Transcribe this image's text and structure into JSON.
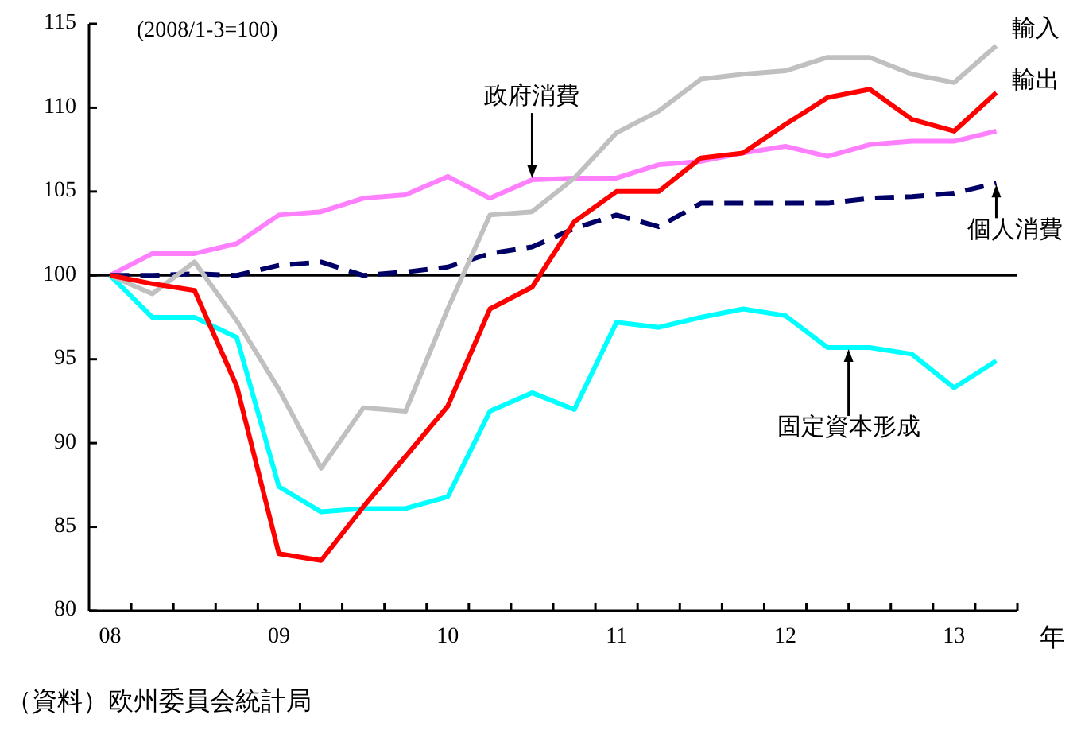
{
  "chart_data": {
    "type": "line",
    "subtitle": "(2008/1-3=100)",
    "xlabel": "年",
    "annotations": [
      "（資料）欧州委員会統計局"
    ],
    "categories": [
      "08",
      null,
      null,
      null,
      "09",
      null,
      null,
      null,
      "10",
      null,
      null,
      null,
      "11",
      null,
      null,
      null,
      "12",
      null,
      null,
      null,
      "13",
      null
    ],
    "ylim": [
      80,
      115
    ],
    "yticks": [
      80,
      85,
      90,
      95,
      100,
      105,
      110,
      115
    ],
    "ref_lines": [
      {
        "axis": "y",
        "value": 100,
        "color": "#000000"
      }
    ],
    "series": [
      {
        "name": "輸入",
        "color": "#c0c0c0",
        "values": [
          100,
          98.9,
          100.8,
          97.3,
          93.2,
          88.5,
          92.1,
          91.9,
          98.0,
          103.6,
          103.8,
          105.8,
          108.5,
          109.8,
          111.7,
          112.0,
          112.2,
          113.0,
          113.0,
          112.0,
          111.5,
          113.7
        ]
      },
      {
        "name": "輸出",
        "color": "#ff0000",
        "values": [
          100,
          99.5,
          99.1,
          93.4,
          83.4,
          83.0,
          86.2,
          89.2,
          92.2,
          98.0,
          99.3,
          103.2,
          105.0,
          105.0,
          107.0,
          107.3,
          109.0,
          110.6,
          111.1,
          109.3,
          108.6,
          110.9
        ]
      },
      {
        "name": "政府消費",
        "color": "#ff80ff",
        "values": [
          100,
          101.3,
          101.3,
          101.9,
          103.6,
          103.8,
          104.6,
          104.8,
          105.9,
          104.6,
          105.7,
          105.8,
          105.8,
          106.6,
          106.8,
          107.3,
          107.7,
          107.1,
          107.8,
          108.0,
          108.0,
          108.6
        ]
      },
      {
        "name": "個人消費",
        "color": "#000066",
        "line_style": "dashed",
        "values": [
          100,
          100,
          100.1,
          100,
          100.6,
          100.8,
          100,
          100.2,
          100.5,
          101.3,
          101.7,
          102.8,
          103.6,
          102.9,
          104.3,
          104.3,
          104.3,
          104.3,
          104.6,
          104.7,
          104.9,
          105.5
        ]
      },
      {
        "name": "固定資本形成",
        "color": "#00ffff",
        "values": [
          100,
          97.5,
          97.5,
          96.3,
          87.4,
          85.9,
          86.1,
          86.1,
          86.8,
          91.9,
          93.0,
          92.0,
          97.2,
          96.9,
          97.5,
          98.0,
          97.6,
          95.7,
          95.7,
          95.3,
          93.3,
          94.9
        ]
      }
    ]
  }
}
